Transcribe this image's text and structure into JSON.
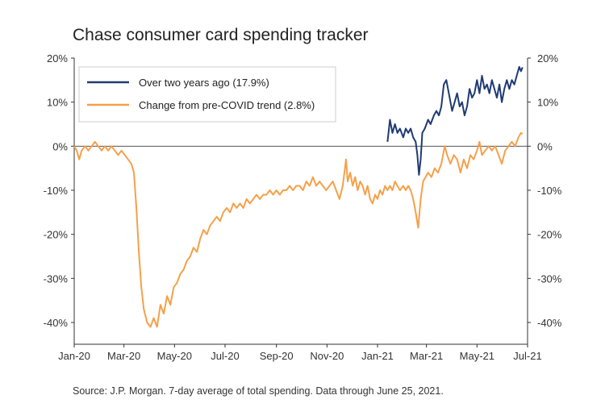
{
  "chart_data": {
    "type": "line",
    "title": "Chase consumer card spending tracker",
    "source": "Source: J.P. Morgan. 7-day average of total spending. Data through June 25, 2021.",
    "ylim": [
      -45,
      20
    ],
    "yticks": [
      20,
      10,
      0,
      -10,
      -20,
      -30,
      -40
    ],
    "ytick_labels": [
      "20%",
      "10%",
      "0%",
      "-10%",
      "-20%",
      "-30%",
      "-40%"
    ],
    "x_range": [
      "2020-01-01",
      "2021-07-01"
    ],
    "xticks": [
      "2020-01-01",
      "2020-03-01",
      "2020-05-01",
      "2020-07-01",
      "2020-09-01",
      "2020-11-01",
      "2021-01-01",
      "2021-03-01",
      "2021-05-01",
      "2021-07-01"
    ],
    "xtick_labels": [
      "Jan-20",
      "Mar-20",
      "May-20",
      "Jul-20",
      "Sep-20",
      "Nov-20",
      "Jan-21",
      "Mar-21",
      "May-21",
      "Jul-21"
    ],
    "legend_position": "top-left",
    "colors": {
      "navy": "#1f3b73",
      "orange": "#f5a04a",
      "zero_line": "#555555",
      "frame": "#333333"
    },
    "series": [
      {
        "name": "Over two years ago (17.9%)",
        "color": "#1f3b73",
        "points": [
          [
            "2021-01-13",
            1
          ],
          [
            "2021-01-16",
            6
          ],
          [
            "2021-01-19",
            3
          ],
          [
            "2021-01-22",
            5
          ],
          [
            "2021-01-25",
            3
          ],
          [
            "2021-01-28",
            4
          ],
          [
            "2021-02-01",
            2
          ],
          [
            "2021-02-04",
            4
          ],
          [
            "2021-02-07",
            3
          ],
          [
            "2021-02-10",
            4
          ],
          [
            "2021-02-13",
            2
          ],
          [
            "2021-02-16",
            1
          ],
          [
            "2021-02-18",
            -2
          ],
          [
            "2021-02-20",
            -6.5
          ],
          [
            "2021-02-22",
            -3
          ],
          [
            "2021-02-24",
            3
          ],
          [
            "2021-02-27",
            4
          ],
          [
            "2021-03-03",
            6
          ],
          [
            "2021-03-06",
            5
          ],
          [
            "2021-03-10",
            7
          ],
          [
            "2021-03-13",
            8
          ],
          [
            "2021-03-16",
            7
          ],
          [
            "2021-03-19",
            9
          ],
          [
            "2021-03-22",
            14
          ],
          [
            "2021-03-25",
            15
          ],
          [
            "2021-03-28",
            12
          ],
          [
            "2021-04-01",
            8
          ],
          [
            "2021-04-04",
            10
          ],
          [
            "2021-04-07",
            12
          ],
          [
            "2021-04-10",
            9
          ],
          [
            "2021-04-13",
            10
          ],
          [
            "2021-04-16",
            7
          ],
          [
            "2021-04-19",
            9
          ],
          [
            "2021-04-22",
            13
          ],
          [
            "2021-04-25",
            11
          ],
          [
            "2021-04-28",
            12
          ],
          [
            "2021-05-01",
            15
          ],
          [
            "2021-05-04",
            12
          ],
          [
            "2021-05-07",
            16
          ],
          [
            "2021-05-10",
            13
          ],
          [
            "2021-05-13",
            14
          ],
          [
            "2021-05-16",
            12
          ],
          [
            "2021-05-19",
            15
          ],
          [
            "2021-05-22",
            13
          ],
          [
            "2021-05-25",
            11
          ],
          [
            "2021-05-28",
            14
          ],
          [
            "2021-05-31",
            10
          ],
          [
            "2021-06-03",
            13
          ],
          [
            "2021-06-06",
            15
          ],
          [
            "2021-06-09",
            13
          ],
          [
            "2021-06-12",
            15
          ],
          [
            "2021-06-15",
            14
          ],
          [
            "2021-06-18",
            16
          ],
          [
            "2021-06-21",
            18
          ],
          [
            "2021-06-23",
            17
          ],
          [
            "2021-06-25",
            17.9
          ]
        ]
      },
      {
        "name": "Change from pre-COVID trend (2.8%)",
        "color": "#f5a04a",
        "points": [
          [
            "2020-01-01",
            0
          ],
          [
            "2020-01-04",
            -1
          ],
          [
            "2020-01-07",
            -3
          ],
          [
            "2020-01-10",
            -1
          ],
          [
            "2020-01-14",
            0
          ],
          [
            "2020-01-18",
            -1
          ],
          [
            "2020-01-22",
            0
          ],
          [
            "2020-01-26",
            1
          ],
          [
            "2020-01-30",
            0
          ],
          [
            "2020-02-03",
            -1
          ],
          [
            "2020-02-07",
            0
          ],
          [
            "2020-02-11",
            -1
          ],
          [
            "2020-02-15",
            0
          ],
          [
            "2020-02-19",
            -1
          ],
          [
            "2020-02-23",
            -2
          ],
          [
            "2020-02-27",
            -1
          ],
          [
            "2020-03-02",
            -2
          ],
          [
            "2020-03-06",
            -3
          ],
          [
            "2020-03-10",
            -4
          ],
          [
            "2020-03-13",
            -6
          ],
          [
            "2020-03-16",
            -14
          ],
          [
            "2020-03-19",
            -24
          ],
          [
            "2020-03-22",
            -32
          ],
          [
            "2020-03-25",
            -37
          ],
          [
            "2020-03-29",
            -40
          ],
          [
            "2020-04-02",
            -41
          ],
          [
            "2020-04-06",
            -39
          ],
          [
            "2020-04-10",
            -41
          ],
          [
            "2020-04-14",
            -36
          ],
          [
            "2020-04-18",
            -38
          ],
          [
            "2020-04-22",
            -34
          ],
          [
            "2020-04-26",
            -36
          ],
          [
            "2020-04-30",
            -32
          ],
          [
            "2020-05-04",
            -31
          ],
          [
            "2020-05-08",
            -29
          ],
          [
            "2020-05-12",
            -28
          ],
          [
            "2020-05-16",
            -26
          ],
          [
            "2020-05-20",
            -25
          ],
          [
            "2020-05-24",
            -23
          ],
          [
            "2020-05-28",
            -24
          ],
          [
            "2020-06-01",
            -21
          ],
          [
            "2020-06-05",
            -19
          ],
          [
            "2020-06-09",
            -20
          ],
          [
            "2020-06-13",
            -18
          ],
          [
            "2020-06-17",
            -17
          ],
          [
            "2020-06-21",
            -16
          ],
          [
            "2020-06-25",
            -17
          ],
          [
            "2020-06-29",
            -15
          ],
          [
            "2020-07-03",
            -14
          ],
          [
            "2020-07-07",
            -15
          ],
          [
            "2020-07-11",
            -13
          ],
          [
            "2020-07-15",
            -14
          ],
          [
            "2020-07-19",
            -13
          ],
          [
            "2020-07-23",
            -14
          ],
          [
            "2020-07-27",
            -12
          ],
          [
            "2020-07-31",
            -13
          ],
          [
            "2020-08-04",
            -12
          ],
          [
            "2020-08-08",
            -11
          ],
          [
            "2020-08-12",
            -12
          ],
          [
            "2020-08-16",
            -11
          ],
          [
            "2020-08-20",
            -11
          ],
          [
            "2020-08-24",
            -10
          ],
          [
            "2020-08-28",
            -11
          ],
          [
            "2020-09-01",
            -10
          ],
          [
            "2020-09-05",
            -11
          ],
          [
            "2020-09-09",
            -10
          ],
          [
            "2020-09-13",
            -10
          ],
          [
            "2020-09-17",
            -9
          ],
          [
            "2020-09-21",
            -10
          ],
          [
            "2020-09-25",
            -9
          ],
          [
            "2020-09-29",
            -9
          ],
          [
            "2020-10-03",
            -10
          ],
          [
            "2020-10-07",
            -8
          ],
          [
            "2020-10-11",
            -9
          ],
          [
            "2020-10-15",
            -7
          ],
          [
            "2020-10-19",
            -9
          ],
          [
            "2020-10-23",
            -8
          ],
          [
            "2020-10-27",
            -9
          ],
          [
            "2020-10-31",
            -10
          ],
          [
            "2020-11-04",
            -9
          ],
          [
            "2020-11-08",
            -8
          ],
          [
            "2020-11-12",
            -10
          ],
          [
            "2020-11-16",
            -12
          ],
          [
            "2020-11-20",
            -9
          ],
          [
            "2020-11-24",
            -3
          ],
          [
            "2020-11-26",
            -8
          ],
          [
            "2020-11-29",
            -6
          ],
          [
            "2020-12-02",
            -9
          ],
          [
            "2020-12-05",
            -7
          ],
          [
            "2020-12-08",
            -10
          ],
          [
            "2020-12-11",
            -8
          ],
          [
            "2020-12-14",
            -9
          ],
          [
            "2020-12-17",
            -11
          ],
          [
            "2020-12-20",
            -9
          ],
          [
            "2020-12-23",
            -12
          ],
          [
            "2020-12-26",
            -13
          ],
          [
            "2020-12-29",
            -11
          ],
          [
            "2021-01-01",
            -12
          ],
          [
            "2021-01-04",
            -10
          ],
          [
            "2021-01-07",
            -11
          ],
          [
            "2021-01-10",
            -9
          ],
          [
            "2021-01-13",
            -10
          ],
          [
            "2021-01-16",
            -9
          ],
          [
            "2021-01-19",
            -10
          ],
          [
            "2021-01-22",
            -8
          ],
          [
            "2021-01-25",
            -9
          ],
          [
            "2021-01-28",
            -10
          ],
          [
            "2021-02-01",
            -9
          ],
          [
            "2021-02-04",
            -10
          ],
          [
            "2021-02-07",
            -9
          ],
          [
            "2021-02-10",
            -10
          ],
          [
            "2021-02-13",
            -12
          ],
          [
            "2021-02-16",
            -15
          ],
          [
            "2021-02-19",
            -18.5
          ],
          [
            "2021-02-22",
            -12
          ],
          [
            "2021-02-25",
            -8
          ],
          [
            "2021-02-28",
            -7
          ],
          [
            "2021-03-03",
            -6
          ],
          [
            "2021-03-07",
            -7
          ],
          [
            "2021-03-11",
            -5
          ],
          [
            "2021-03-15",
            -6
          ],
          [
            "2021-03-19",
            -4
          ],
          [
            "2021-03-23",
            0
          ],
          [
            "2021-03-26",
            -2
          ],
          [
            "2021-03-30",
            -4
          ],
          [
            "2021-04-03",
            -2
          ],
          [
            "2021-04-07",
            -3
          ],
          [
            "2021-04-11",
            -6
          ],
          [
            "2021-04-15",
            -3
          ],
          [
            "2021-04-19",
            -5
          ],
          [
            "2021-04-23",
            -2
          ],
          [
            "2021-04-27",
            -3
          ],
          [
            "2021-05-01",
            -1
          ],
          [
            "2021-05-04",
            1
          ],
          [
            "2021-05-07",
            -2
          ],
          [
            "2021-05-11",
            -1
          ],
          [
            "2021-05-15",
            0
          ],
          [
            "2021-05-19",
            -1
          ],
          [
            "2021-05-23",
            0
          ],
          [
            "2021-05-27",
            -2
          ],
          [
            "2021-05-31",
            -4
          ],
          [
            "2021-06-04",
            -1
          ],
          [
            "2021-06-08",
            0
          ],
          [
            "2021-06-12",
            1
          ],
          [
            "2021-06-16",
            0
          ],
          [
            "2021-06-20",
            2
          ],
          [
            "2021-06-23",
            3
          ],
          [
            "2021-06-25",
            2.8
          ]
        ]
      }
    ]
  }
}
